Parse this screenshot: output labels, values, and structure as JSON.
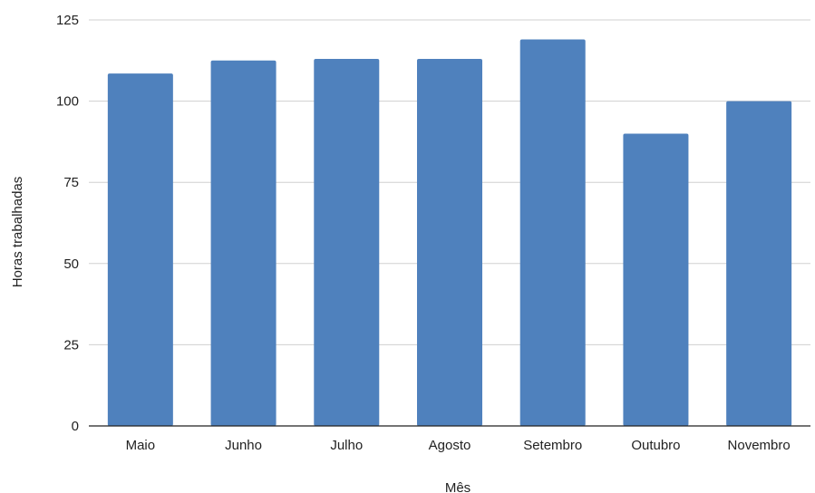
{
  "chart_data": {
    "type": "bar",
    "categories": [
      "Maio",
      "Junho",
      "Julho",
      "Agosto",
      "Setembro",
      "Outubro",
      "Novembro"
    ],
    "values": [
      108.5,
      112.5,
      113,
      113,
      119,
      90,
      100
    ],
    "xlabel": "Mês",
    "ylabel": "Horas trabalhadas",
    "ylim": [
      0,
      125
    ],
    "yticks": [
      0,
      25,
      50,
      75,
      100,
      125
    ],
    "grid": true,
    "legend": "none",
    "colors": {
      "bar": "#4f81bd",
      "grid": "#d0d0d0",
      "axis": "#222222"
    }
  }
}
